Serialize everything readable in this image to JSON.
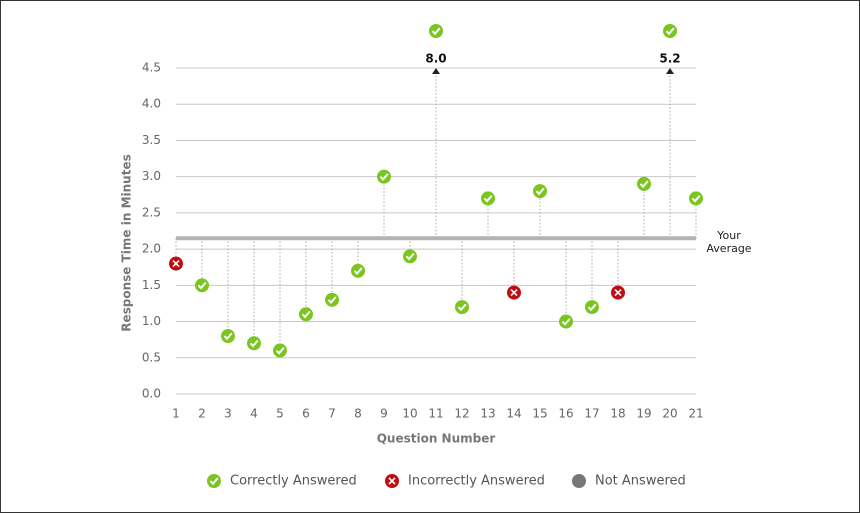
{
  "chart_data": {
    "type": "scatter",
    "y_label": "Response Time in Minutes",
    "x_label": "Question Number",
    "xlim": [
      1,
      21
    ],
    "xticks": [
      1,
      2,
      3,
      4,
      5,
      6,
      7,
      8,
      9,
      10,
      11,
      12,
      13,
      14,
      15,
      16,
      17,
      18,
      19,
      20,
      21
    ],
    "ylim": [
      0,
      4.5
    ],
    "yticks": [
      {
        "value": 0,
        "label": "0.0"
      },
      0.5,
      {
        "value": 1,
        "label": "1.0"
      },
      1.5,
      {
        "value": 2,
        "label": "2.0"
      },
      2.5,
      {
        "value": 3,
        "label": "3.0"
      },
      3.5,
      {
        "value": 4,
        "label": "4.0"
      },
      4.5
    ],
    "grid": true,
    "average": 2.15,
    "average_label": "Your Average",
    "series": [
      {
        "name": "Correctly Answered",
        "color": "#7ac51f",
        "marker": "check",
        "x": [
          2,
          3,
          4,
          5,
          6,
          7,
          8,
          9,
          10,
          11,
          12,
          13,
          15,
          16,
          17,
          19,
          20,
          21
        ],
        "values": [
          1.5,
          0.8,
          0.7,
          0.6,
          1.1,
          1.3,
          1.7,
          3.0,
          1.9,
          8.0,
          1.2,
          2.7,
          2.8,
          1.0,
          1.2,
          2.9,
          5.2,
          2.7
        ],
        "value_labels": [
          null,
          null,
          null,
          null,
          null,
          null,
          null,
          null,
          null,
          "8.0",
          null,
          null,
          null,
          null,
          null,
          null,
          "5.2",
          null
        ]
      },
      {
        "name": "Incorrectly Answered",
        "color": "#c00d12",
        "marker": "cross",
        "x": [
          1,
          14,
          18
        ],
        "values": [
          1.8,
          1.4,
          1.4
        ],
        "value_labels": [
          null,
          null,
          null
        ]
      },
      {
        "name": "Not Answered",
        "color": "#777777",
        "marker": "dot",
        "x": [],
        "values": [],
        "value_labels": []
      }
    ]
  }
}
